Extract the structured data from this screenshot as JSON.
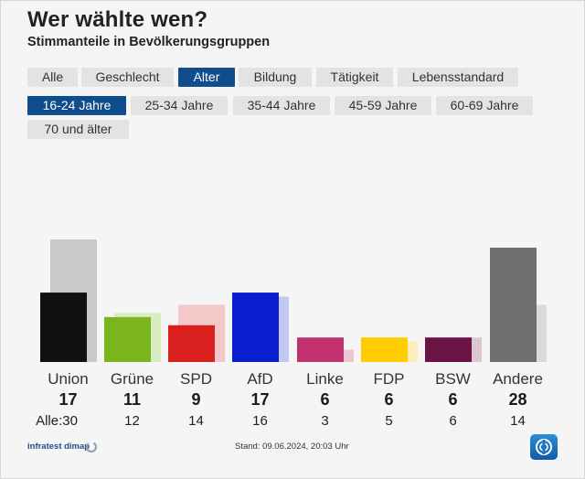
{
  "header": {
    "title": "Wer wählte wen?",
    "subtitle": "Stimmanteile in Bevölkerungsgruppen"
  },
  "category_tabs": [
    {
      "label": "Alle",
      "active": false
    },
    {
      "label": "Geschlecht",
      "active": false
    },
    {
      "label": "Alter",
      "active": true
    },
    {
      "label": "Bildung",
      "active": false
    },
    {
      "label": "Tätigkeit",
      "active": false
    },
    {
      "label": "Lebensstandard",
      "active": false
    }
  ],
  "age_tabs": [
    {
      "label": "16-24 Jahre",
      "active": true
    },
    {
      "label": "25-34 Jahre",
      "active": false
    },
    {
      "label": "35-44 Jahre",
      "active": false
    },
    {
      "label": "45-59 Jahre",
      "active": false
    },
    {
      "label": "60-69 Jahre",
      "active": false
    },
    {
      "label": "70 und älter",
      "active": false
    }
  ],
  "all_prefix": "Alle:",
  "chart_data": {
    "type": "bar",
    "title": "Wer wählte wen?",
    "subtitle": "Stimmanteile in Bevölkerungsgruppen",
    "categories": [
      "Union",
      "Grüne",
      "SPD",
      "AfD",
      "Linke",
      "FDP",
      "BSW",
      "Andere"
    ],
    "series": [
      {
        "name": "16-24 Jahre",
        "values": [
          17,
          11,
          9,
          17,
          6,
          6,
          6,
          28
        ]
      },
      {
        "name": "Alle",
        "values": [
          30,
          12,
          14,
          16,
          3,
          5,
          6,
          14
        ]
      }
    ],
    "colors": [
      "#111111",
      "#7ab51d",
      "#d9201f",
      "#0a1ed0",
      "#c1306f",
      "#ffcc00",
      "#6b1344",
      "#707070"
    ],
    "ghost_colors": [
      "#c9c9c9",
      "#d9ebc1",
      "#f2c8c8",
      "#c1c9f0",
      "#ecc4d5",
      "#fbeebb",
      "#dcc8d2",
      "#dadada"
    ],
    "ylim": [
      0,
      30
    ],
    "xlabel": "",
    "ylabel": ""
  },
  "footer": {
    "source": "infratest dimap",
    "stand": "Stand: 09.06.2024, 20:03 Uhr"
  }
}
